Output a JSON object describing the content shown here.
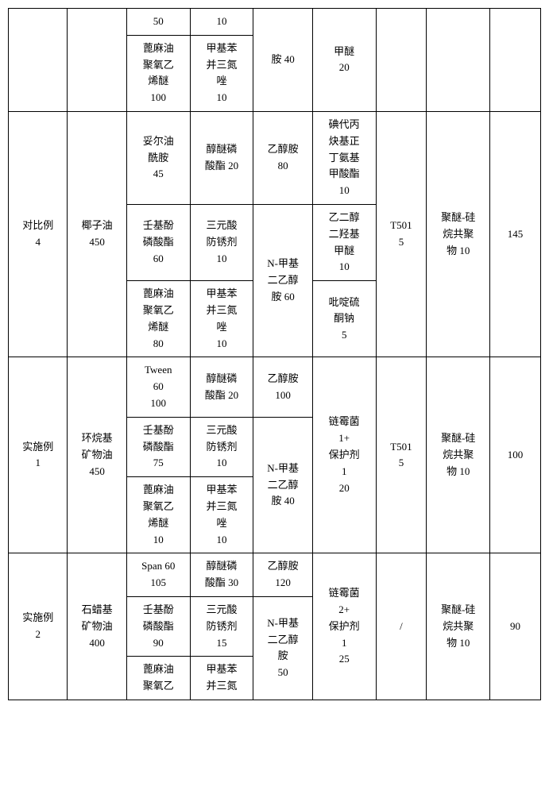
{
  "rows": {
    "r1": {
      "c2": "50",
      "c3": "10",
      "c4": "胺 40",
      "c5": "甲醚\n20"
    },
    "r2": {
      "c2": "蓖麻油\n聚氧乙\n烯醚\n100",
      "c3": "甲基苯\n并三氮\n唑\n10"
    },
    "r3": {
      "c0": "对比例\n4",
      "c1": "椰子油\n450",
      "c2": "妥尔油\n酰胺\n45",
      "c3": "醇醚磷\n酸酯 20",
      "c4": "乙醇胺\n80",
      "c5": "碘代丙\n炔基正\n丁氨基\n甲酸酯\n10",
      "c6": "T501\n5",
      "c7": "聚醚-硅\n烷共聚\n物 10",
      "c8": "145"
    },
    "r4": {
      "c2": "壬基酚\n磷酸酯\n60",
      "c3": "三元酸\n防锈剂\n10",
      "c4": "N-甲基\n二乙醇\n胺 60",
      "c5": "乙二醇\n二羟基\n甲醚\n10"
    },
    "r5": {
      "c2": "蓖麻油\n聚氧乙\n烯醚\n80",
      "c3": "甲基苯\n并三氮\n唑\n10",
      "c5": "吡啶硫\n酮钠\n5"
    },
    "r6": {
      "c0": "实施例\n1",
      "c1": "环烷基\n矿物油\n450",
      "c2": "Tween\n60\n100",
      "c3": "醇醚磷\n酸酯 20",
      "c4": "乙醇胺\n100",
      "c5": "链霉菌\n1+\n保护剂\n1\n20",
      "c6": "T501\n5",
      "c7": "聚醚-硅\n烷共聚\n物 10",
      "c8": "100"
    },
    "r7": {
      "c2": "壬基酚\n磷酸酯\n75",
      "c3": "三元酸\n防锈剂\n10",
      "c4": "N-甲基\n二乙醇\n胺 40"
    },
    "r8": {
      "c2": "蓖麻油\n聚氧乙\n烯醚\n10",
      "c3": "甲基苯\n并三氮\n唑\n10"
    },
    "r9": {
      "c0": "实施例\n2",
      "c1": "石蜡基\n矿物油\n400",
      "c2": "Span 60\n105",
      "c3": "醇醚磷\n酸酯 30",
      "c4": "乙醇胺\n120",
      "c5": "链霉菌\n2+\n保护剂\n1\n25",
      "c6": "/",
      "c7": "聚醚-硅\n烷共聚\n物 10",
      "c8": "90"
    },
    "r10": {
      "c2": "壬基酚\n磷酸酯\n90",
      "c3": "三元酸\n防锈剂\n15",
      "c4": "N-甲基\n二乙醇\n胺\n50"
    },
    "r11": {
      "c2": "蓖麻油\n聚氧乙",
      "c3": "甲基苯\n并三氮"
    }
  }
}
